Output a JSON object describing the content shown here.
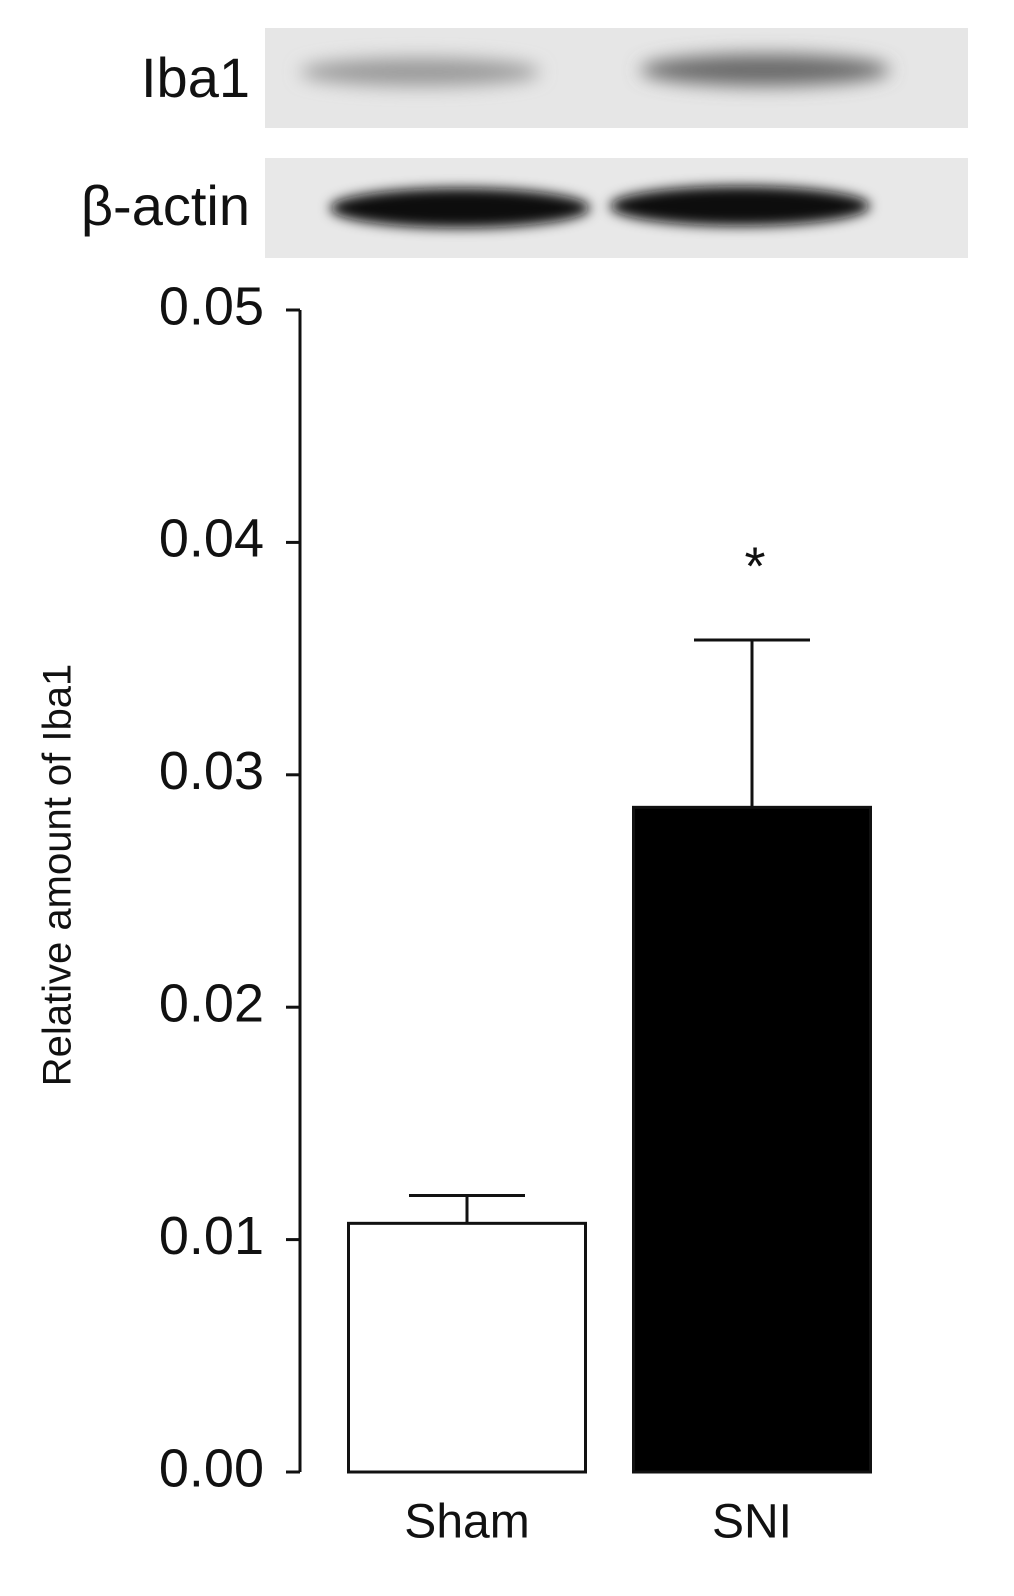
{
  "chart_data": {
    "type": "bar",
    "blot_labels": [
      "Iba1",
      "β-actin"
    ],
    "y_label": "Relative amount of Iba1",
    "categories": [
      "Sham",
      "SNI"
    ],
    "values": [
      0.0107,
      0.0286
    ],
    "errors": [
      0.0012,
      0.0072
    ],
    "colors": [
      "#ffffff",
      "#000000"
    ],
    "value_annotations": [
      null,
      "*"
    ],
    "ylim": [
      0,
      0.05
    ],
    "yticks": [
      {
        "value": 0,
        "label": "0.00"
      },
      0.01,
      0.02,
      0.03,
      0.04,
      0.05
    ],
    "grid": false
  }
}
